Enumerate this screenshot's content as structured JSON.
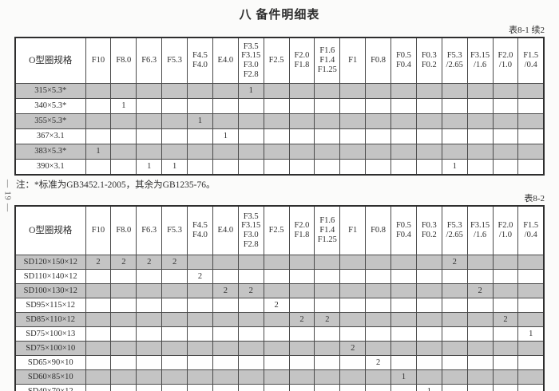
{
  "page": {
    "title": "八  备件明细表",
    "margin_page_number": "— 19 —",
    "note": "注：*标准为GB3452.1-2005，其余为GB1235-76。"
  },
  "header_columns": [
    "O型圈规格",
    "F10",
    "F8.0",
    "F6.3",
    "F5.3",
    "F4.5\nF4.0",
    "E4.0",
    "F3.5\nF3.15\nF3.0\nF2.8",
    "F2.5",
    "F2.0\nF1.8",
    "F1.6\nF1.4\nF1.25",
    "F1",
    "F0.8",
    "F0.5\nF0.4",
    "F0.3\nF0.2",
    "F5.3\n/2.65",
    "F3.15\n/1.6",
    "F2.0\n/1.0",
    "F1.5\n/0.4"
  ],
  "tables": [
    {
      "caption": "表8-1 续2",
      "rows": [
        {
          "spec": "315×5.3*",
          "values": [
            "",
            "",
            "",
            "",
            "",
            "",
            "1",
            "",
            "",
            "",
            "",
            "",
            "",
            "",
            "",
            "",
            "",
            ""
          ]
        },
        {
          "spec": "340×5.3*",
          "values": [
            "",
            "1",
            "",
            "",
            "",
            "",
            "",
            "",
            "",
            "",
            "",
            "",
            "",
            "",
            "",
            "",
            "",
            ""
          ]
        },
        {
          "spec": "355×5.3*",
          "values": [
            "",
            "",
            "",
            "",
            "1",
            "",
            "",
            "",
            "",
            "",
            "",
            "",
            "",
            "",
            "",
            "",
            "",
            ""
          ]
        },
        {
          "spec": "367×3.1",
          "values": [
            "",
            "",
            "",
            "",
            "",
            "1",
            "",
            "",
            "",
            "",
            "",
            "",
            "",
            "",
            "",
            "",
            "",
            ""
          ]
        },
        {
          "spec": "383×5.3*",
          "values": [
            "1",
            "",
            "",
            "",
            "",
            "",
            "",
            "",
            "",
            "",
            "",
            "",
            "",
            "",
            "",
            "",
            "",
            ""
          ]
        },
        {
          "spec": "390×3.1",
          "values": [
            "",
            "",
            "1",
            "1",
            "",
            "",
            "",
            "",
            "",
            "",
            "",
            "",
            "",
            "",
            "1",
            "",
            "",
            ""
          ]
        }
      ]
    },
    {
      "caption": "表8-2",
      "rows": [
        {
          "spec": "SD120×150×12",
          "values": [
            "2",
            "2",
            "2",
            "2",
            "",
            "",
            "",
            "",
            "",
            "",
            "",
            "",
            "",
            "",
            "2",
            "",
            "",
            ""
          ]
        },
        {
          "spec": "SD110×140×12",
          "values": [
            "",
            "",
            "",
            "",
            "2",
            "",
            "",
            "",
            "",
            "",
            "",
            "",
            "",
            "",
            "",
            "",
            "",
            ""
          ]
        },
        {
          "spec": "SD100×130×12",
          "values": [
            "",
            "",
            "",
            "",
            "",
            "2",
            "2",
            "",
            "",
            "",
            "",
            "",
            "",
            "",
            "",
            "2",
            "",
            ""
          ]
        },
        {
          "spec": "SD95×115×12",
          "values": [
            "",
            "",
            "",
            "",
            "",
            "",
            "",
            "2",
            "",
            "",
            "",
            "",
            "",
            "",
            "",
            "",
            "",
            ""
          ]
        },
        {
          "spec": "SD85×110×12",
          "values": [
            "",
            "",
            "",
            "",
            "",
            "",
            "",
            "",
            "2",
            "2",
            "",
            "",
            "",
            "",
            "",
            "",
            "2",
            ""
          ]
        },
        {
          "spec": "SD75×100×13",
          "values": [
            "",
            "",
            "",
            "",
            "",
            "",
            "",
            "",
            "",
            "",
            "",
            "",
            "",
            "",
            "",
            "",
            "",
            "1"
          ]
        },
        {
          "spec": "SD75×100×10",
          "values": [
            "",
            "",
            "",
            "",
            "",
            "",
            "",
            "",
            "",
            "",
            "2",
            "",
            "",
            "",
            "",
            "",
            "",
            ""
          ]
        },
        {
          "spec": "SD65×90×10",
          "values": [
            "",
            "",
            "",
            "",
            "",
            "",
            "",
            "",
            "",
            "",
            "",
            "2",
            "",
            "",
            "",
            "",
            "",
            ""
          ]
        },
        {
          "spec": "SD60×85×10",
          "values": [
            "",
            "",
            "",
            "",
            "",
            "",
            "",
            "",
            "",
            "",
            "",
            "",
            "1",
            "",
            "",
            "",
            "",
            ""
          ]
        },
        {
          "spec": "SD40×70×12",
          "values": [
            "",
            "",
            "",
            "",
            "",
            "",
            "",
            "",
            "",
            "",
            "",
            "",
            "",
            "1",
            "",
            "",
            "",
            ""
          ]
        }
      ]
    }
  ],
  "colors": {
    "row_shade": "#c4c4c4",
    "grid_line": "#4a4a4a",
    "outer_border": "#2e2e2e",
    "text": "#2f2f2f"
  }
}
